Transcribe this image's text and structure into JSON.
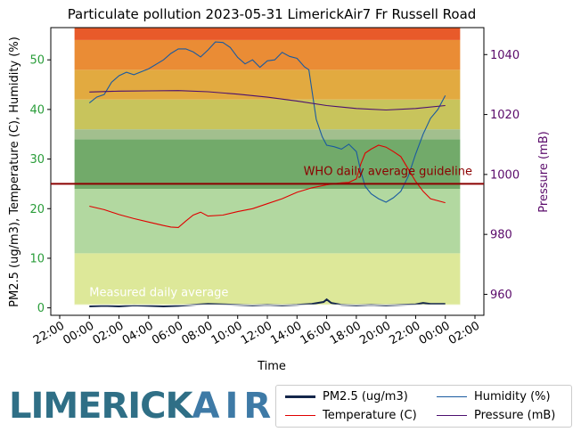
{
  "chart_data": {
    "type": "line",
    "title": "Particulate pollution 2023-05-31 LimerickAir7 Fr Russell Road",
    "xlabel": "Time",
    "ylabel": "PM2.5 (ug/m3), Temperature (C), Humidity (%)",
    "y2label": "Pressure (mB)",
    "ylim": [
      -1.5,
      56.5
    ],
    "y2lim": [
      953,
      1049
    ],
    "yticks": [
      "0",
      "10",
      "20",
      "30",
      "40",
      "50"
    ],
    "y2ticks": [
      "960",
      "980",
      "1000",
      "1020",
      "1040"
    ],
    "xticks": [
      "22:00",
      "00:00",
      "02:00",
      "04:00",
      "06:00",
      "08:00",
      "10:00",
      "12:00",
      "14:00",
      "16:00",
      "18:00",
      "20:00",
      "22:00",
      "00:00",
      "02:00"
    ],
    "xlim_hours": [
      -2.6,
      26.6
    ],
    "bands": [
      {
        "from": 0.5,
        "to": 11,
        "color": "#dde899"
      },
      {
        "from": 11,
        "to": 24,
        "color": "#b2d8a0"
      },
      {
        "from": 24,
        "to": 34,
        "color": "#72aa6a"
      },
      {
        "from": 34,
        "to": 36,
        "color": "#a2bf8e"
      },
      {
        "from": 36,
        "to": 42,
        "color": "#c8c45c"
      },
      {
        "from": 42,
        "to": 48,
        "color": "#e2aa40"
      },
      {
        "from": 48,
        "to": 54,
        "color": "#ea8c35"
      },
      {
        "from": 54,
        "to": 56.5,
        "color": "#e85a2a"
      }
    ],
    "who_guideline": {
      "value": 25,
      "label": "WHO daily average guideline",
      "color": "#8b0000"
    },
    "measured_average": {
      "value": 0.6,
      "label": "Measured daily average",
      "color": "#ffffff"
    },
    "series": [
      {
        "name": "PM2.5 (ug/m3)",
        "color": "#14264a",
        "axis": "left",
        "x": [
          0,
          1,
          2,
          3,
          4,
          5,
          6,
          7,
          8,
          9,
          10,
          11,
          12,
          13,
          14,
          15,
          15.8,
          16,
          16.3,
          17,
          18,
          19,
          20,
          21,
          22,
          22.5,
          23,
          24
        ],
        "y": [
          0.3,
          0.4,
          0.3,
          0.5,
          0.4,
          0.3,
          0.4,
          0.6,
          0.8,
          0.7,
          0.6,
          0.5,
          0.6,
          0.5,
          0.6,
          0.8,
          1.2,
          1.7,
          1.0,
          0.6,
          0.5,
          0.6,
          0.5,
          0.6,
          0.7,
          1.0,
          0.8,
          0.8
        ]
      },
      {
        "name": "Temperature (C)",
        "color": "#e00000",
        "axis": "left",
        "x": [
          0,
          1,
          2,
          3,
          4,
          5,
          5.5,
          6,
          6.5,
          7,
          7.5,
          8,
          9,
          10,
          11,
          12,
          13,
          14,
          15,
          16,
          17,
          17.5,
          18,
          18.3,
          18.6,
          19,
          19.5,
          20,
          20.5,
          21,
          21.5,
          22,
          22.5,
          23,
          23.5,
          24
        ],
        "y": [
          20.5,
          19.8,
          18.8,
          18.0,
          17.3,
          16.6,
          16.3,
          16.2,
          17.5,
          18.7,
          19.3,
          18.5,
          18.7,
          19.4,
          20.0,
          21.0,
          22.0,
          23.3,
          24.2,
          24.8,
          25.2,
          25.3,
          26.0,
          29.0,
          31.2,
          32.0,
          32.8,
          32.4,
          31.5,
          30.5,
          28.0,
          25.5,
          23.5,
          22.0,
          21.6,
          21.2
        ]
      },
      {
        "name": "Humidity (%)",
        "color": "#1a5aa0",
        "axis": "left",
        "x": [
          0,
          0.5,
          1,
          1.5,
          2,
          2.5,
          3,
          4,
          5,
          5.5,
          6,
          6.5,
          7,
          7.5,
          8,
          8.5,
          9,
          9.5,
          10,
          10.5,
          11,
          11.5,
          12,
          12.5,
          13,
          13.5,
          14,
          14.5,
          14.8,
          15,
          15.3,
          15.7,
          16,
          16.5,
          17,
          17.5,
          18,
          18.3,
          18.6,
          19,
          19.5,
          20,
          20.5,
          21,
          21.5,
          22,
          22.5,
          23,
          23.5,
          24
        ],
        "y": [
          41.3,
          42.5,
          43.0,
          45.5,
          46.8,
          47.5,
          47.0,
          48.2,
          50.0,
          51.3,
          52.2,
          52.2,
          51.6,
          50.6,
          52.0,
          53.6,
          53.5,
          52.5,
          50.5,
          49.2,
          50.0,
          48.5,
          49.8,
          50.0,
          51.5,
          50.7,
          50.3,
          48.6,
          48.0,
          44.0,
          38.0,
          34.5,
          32.8,
          32.5,
          32.0,
          33.0,
          31.5,
          27.5,
          24.5,
          23.0,
          22.0,
          21.3,
          22.2,
          23.5,
          26.5,
          31.0,
          35.0,
          38.2,
          40.0,
          42.8
        ]
      },
      {
        "name": "Pressure (mB)",
        "color": "#4b0f6f",
        "axis": "right",
        "x": [
          0,
          2,
          4,
          6,
          8,
          10,
          12,
          14,
          16,
          18,
          20,
          22,
          24
        ],
        "y": [
          1027.5,
          1027.8,
          1027.9,
          1028.0,
          1027.6,
          1026.8,
          1025.8,
          1024.5,
          1023.0,
          1022.0,
          1021.5,
          1022.0,
          1023.0
        ]
      }
    ],
    "legend": {
      "placement": "bottom-right",
      "columns": 2
    }
  },
  "logo": {
    "text_part1": "LIMERICK",
    "text_part2": "AIR"
  },
  "colors": {
    "left_tick": "#2a9d3a",
    "right_axis": "#5a0a6a",
    "who_line": "#8b0000"
  }
}
